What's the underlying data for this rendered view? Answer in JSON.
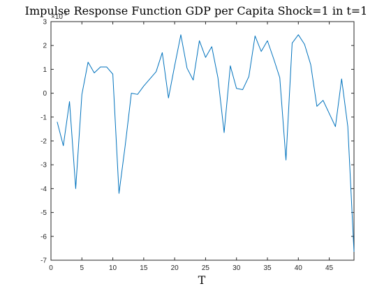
{
  "chart_data": {
    "type": "line",
    "title": "Impulse Response Function GDP per Capita Shock=1 in t=1",
    "xlabel": "T",
    "ylabel": "",
    "y_exponent_label": "×10",
    "y_exponent_power": "-5",
    "xlim": [
      0,
      49
    ],
    "ylim": [
      -7,
      3
    ],
    "xticks": [
      "0",
      "5",
      "10",
      "15",
      "20",
      "25",
      "30",
      "35",
      "40",
      "45"
    ],
    "yticks": [
      "3",
      "2",
      "1",
      "0",
      "-1",
      "-2",
      "-3",
      "-4",
      "-5",
      "-6",
      "-7"
    ],
    "grid": false,
    "series": [
      {
        "color": "#0072BD",
        "x": [
          1,
          2,
          3,
          4,
          5,
          6,
          7,
          8,
          9,
          10,
          11,
          12,
          13,
          14,
          15,
          16,
          17,
          18,
          19,
          20,
          21,
          22,
          23,
          24,
          25,
          26,
          27,
          28,
          29,
          30,
          31,
          32,
          33,
          34,
          35,
          36,
          37,
          38,
          39,
          40,
          41,
          42,
          43,
          44,
          45,
          46,
          47,
          48,
          49
        ],
        "values": [
          -1.2,
          -2.2,
          -0.35,
          -4.0,
          -0.05,
          1.3,
          0.85,
          1.1,
          1.1,
          0.8,
          -4.2,
          -2.2,
          0.0,
          -0.05,
          0.3,
          0.6,
          0.9,
          1.7,
          -0.2,
          1.15,
          2.45,
          1.05,
          0.55,
          2.2,
          1.5,
          1.95,
          0.65,
          -1.65,
          1.15,
          0.2,
          0.15,
          0.7,
          2.4,
          1.75,
          2.2,
          1.45,
          0.65,
          -2.8,
          2.1,
          2.45,
          2.05,
          1.2,
          -0.55,
          -0.3,
          -0.85,
          -1.4,
          0.6,
          -1.4,
          -6.65
        ]
      }
    ]
  }
}
